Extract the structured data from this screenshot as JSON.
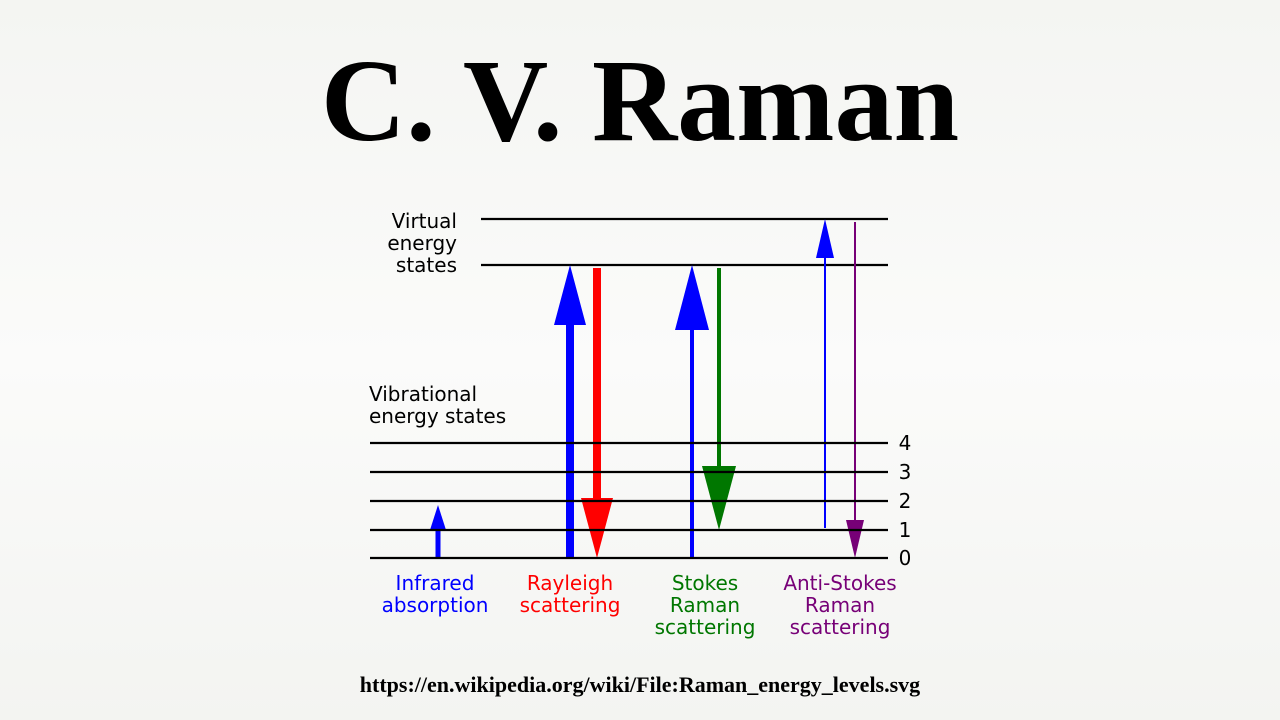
{
  "title": "C. V. Raman",
  "diagram": {
    "virtual_label": [
      "Virtual",
      "energy",
      "states"
    ],
    "vibrational_label": [
      "Vibrational",
      "energy states"
    ],
    "levels": [
      0,
      1,
      2,
      3,
      4
    ],
    "columns": [
      {
        "lines": [
          "Infrared",
          "absorption"
        ],
        "color": "#0000ff"
      },
      {
        "lines": [
          "Rayleigh",
          "scattering"
        ],
        "color": "#ff0000"
      },
      {
        "lines": [
          "Stokes",
          "Raman",
          "scattering"
        ],
        "color": "#007700"
      },
      {
        "lines": [
          "Anti-Stokes",
          "Raman",
          "scattering"
        ],
        "color": "#770077"
      }
    ]
  },
  "source_url": "https://en.wikipedia.org/wiki/File:Raman_energy_levels.svg"
}
